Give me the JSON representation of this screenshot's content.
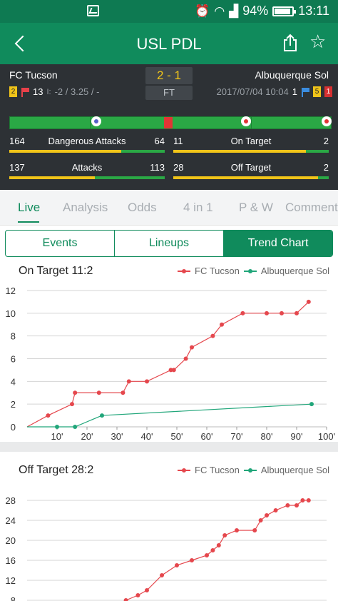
{
  "status_bar": {
    "time": "13:11",
    "battery": "94%",
    "icons": [
      "gallery-icon",
      "alarm-icon",
      "wifi-icon",
      "signal-icon",
      "battery-icon"
    ]
  },
  "header": {
    "title": "USL PDL",
    "icons": [
      "back-icon",
      "share-icon",
      "star-icon"
    ]
  },
  "match": {
    "home_team": "FC Tucson",
    "away_team": "Albuquerque Sol",
    "score": "2 - 1",
    "state": "FT",
    "home_yellow": "2",
    "home_corners": "13",
    "handicap": "-2 / 3.25 / -",
    "datetime": "2017/07/04 10:04",
    "away_corners": "1",
    "away_yellow": "5",
    "away_red": "1"
  },
  "stats": [
    {
      "home": "164",
      "label": "Dangerous Attacks",
      "away": "64",
      "ratio": 0.72
    },
    {
      "home": "11",
      "label": "On Target",
      "away": "2",
      "ratio": 0.85
    },
    {
      "home": "137",
      "label": "Attacks",
      "away": "113",
      "ratio": 0.55
    },
    {
      "home": "28",
      "label": "Off Target",
      "away": "2",
      "ratio": 0.93
    }
  ],
  "tabs": [
    "Live",
    "Analysis",
    "Odds",
    "4 in 1",
    "P & W",
    "Comment"
  ],
  "active_tab": "Live",
  "segments": [
    "Events",
    "Lineups",
    "Trend Chart"
  ],
  "colors": {
    "green": "#108b5c",
    "home": "#e5474d",
    "away": "#21a67a",
    "accent": "#f0c419"
  },
  "chart_data": [
    {
      "type": "line",
      "title": "On Target 11:2",
      "series": [
        {
          "name": "FC Tucson",
          "x": [
            0,
            7,
            15,
            16,
            24,
            32,
            34,
            40,
            48,
            49,
            53,
            55,
            62,
            65,
            72,
            80,
            85,
            90,
            94
          ],
          "values": [
            0,
            1,
            2,
            3,
            3,
            3,
            4,
            4,
            5,
            5,
            6,
            7,
            8,
            9,
            10,
            10,
            10,
            10,
            11
          ]
        },
        {
          "name": "Albuquerque Sol",
          "x": [
            0,
            10,
            16,
            25,
            95
          ],
          "values": [
            0,
            0,
            0,
            1,
            2
          ]
        }
      ],
      "xticks": [
        "10'",
        "20'",
        "30'",
        "40'",
        "50'",
        "60'",
        "70'",
        "80'",
        "90'",
        "100'"
      ],
      "yticks": [
        "0",
        "2",
        "4",
        "6",
        "8",
        "10",
        "12"
      ],
      "xlim": [
        0,
        100
      ],
      "ylim": [
        0,
        12
      ],
      "legend": "top-right"
    },
    {
      "type": "line",
      "title": "Off Target 28:2",
      "series": [
        {
          "name": "FC Tucson",
          "x": [
            30,
            33,
            37,
            40,
            45,
            50,
            55,
            60,
            62,
            64,
            66,
            70,
            76,
            78,
            80,
            83,
            87,
            90,
            92,
            94
          ],
          "values": [
            6,
            8,
            9,
            10,
            13,
            15,
            16,
            17,
            18,
            19,
            21,
            22,
            22,
            24,
            25,
            26,
            27,
            27,
            28,
            28
          ]
        },
        {
          "name": "Albuquerque Sol",
          "x": [],
          "values": []
        }
      ],
      "yticks": [
        "8",
        "12",
        "16",
        "20",
        "24",
        "28"
      ],
      "ylim": [
        6,
        30
      ],
      "legend": "top-right"
    }
  ]
}
